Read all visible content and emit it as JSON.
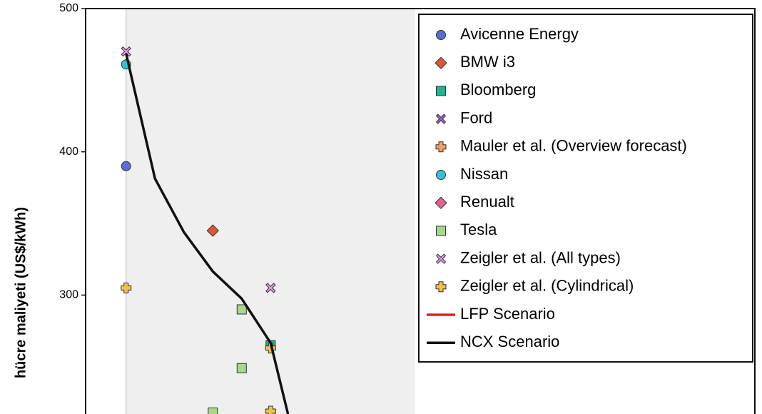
{
  "chart_data": {
    "type": "scatter",
    "ylabel": "hücre maliyeti  (US$/kWh)",
    "ylim": [
      217,
      500
    ],
    "yticks": [
      300,
      400,
      500
    ],
    "xlim": [
      -1.4,
      21.75
    ],
    "shaded_xrange": [
      0,
      10
    ],
    "legend": "upper right",
    "series": [
      {
        "name": "Avicenne Energy",
        "color": "#5b6bd6",
        "marker": "circle",
        "x": [
          0
        ],
        "values": [
          390
        ]
      },
      {
        "name": "BMW i3",
        "color": "#e0553a",
        "marker": "diamond",
        "x": [
          3
        ],
        "values": [
          345
        ]
      },
      {
        "name": "Bloomberg",
        "color": "#1fb58f",
        "marker": "square",
        "x": [
          5
        ],
        "values": [
          265
        ]
      },
      {
        "name": "Ford",
        "color": "#9b5de5",
        "marker": "x",
        "x": [],
        "values": []
      },
      {
        "name": "Mauler et al. (Overview forecast)",
        "color": "#f0a060",
        "marker": "plus",
        "x": [],
        "values": []
      },
      {
        "name": "Nissan",
        "color": "#2cc6d6",
        "marker": "circle",
        "x": [
          0
        ],
        "values": [
          461
        ]
      },
      {
        "name": "Renualt",
        "color": "#e8608a",
        "marker": "diamond",
        "x": [],
        "values": []
      },
      {
        "name": "Tesla",
        "color": "#a8d88a",
        "marker": "square",
        "x": [
          4,
          4,
          3
        ],
        "values": [
          290,
          249,
          218
        ]
      },
      {
        "name": "Zeigler et al. (All types)",
        "color": "#e39be6",
        "marker": "x",
        "x": [
          0,
          5
        ],
        "values": [
          470,
          305
        ]
      },
      {
        "name": "Zeigler et al. (Cylindrical)",
        "color": "#f2c04a",
        "marker": "plus",
        "x": [
          0,
          5,
          5
        ],
        "values": [
          305,
          263,
          219
        ]
      },
      {
        "name": "LFP Scenario",
        "color": "#e02020",
        "marker": "line",
        "x": [],
        "values": []
      },
      {
        "name": "NCX Scenario",
        "color": "#111111",
        "marker": "line",
        "x": [
          0,
          1,
          2,
          3,
          4,
          5,
          5.6
        ],
        "values": [
          468.6,
          381.3,
          343.9,
          316.5,
          297.5,
          266.6,
          217
        ]
      }
    ]
  }
}
